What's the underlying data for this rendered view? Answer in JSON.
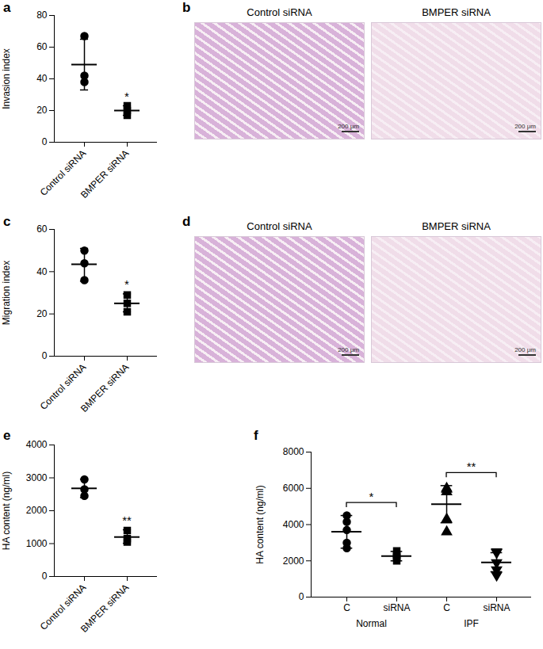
{
  "chart_data": [
    {
      "type": "scatter",
      "title": "a",
      "y_label": "Invasion index",
      "color": "#000000",
      "categories": [
        "Control siRNA",
        "BMPER siRNA"
      ],
      "markers": [
        "circle",
        "square"
      ],
      "points": [
        [
          67,
          42,
          38
        ],
        [
          23,
          20,
          17
        ]
      ],
      "mean": [
        49,
        20
      ],
      "error": [
        [
          33,
          65
        ],
        [
          17,
          23
        ]
      ],
      "ylim": [
        0,
        80
      ],
      "yticks": [
        0,
        20,
        40,
        60,
        80
      ],
      "annotations": [
        {
          "text": "*",
          "category": 1
        }
      ]
    },
    {
      "type": "image",
      "title": "b",
      "panels": [
        {
          "label": "Control siRNA",
          "scale_bar": "200 μm"
        },
        {
          "label": "BMPER siRNA",
          "scale_bar": "200 μm"
        }
      ]
    },
    {
      "type": "scatter",
      "title": "c",
      "y_label": "Migration index",
      "color": "#000000",
      "categories": [
        "Control siRNA",
        "BMPER siRNA"
      ],
      "markers": [
        "circle",
        "square"
      ],
      "points": [
        [
          50,
          44,
          36
        ],
        [
          29,
          25,
          21
        ]
      ],
      "mean": [
        43.5,
        25
      ],
      "error": [
        [
          35.5,
          51
        ],
        [
          21,
          29.5
        ]
      ],
      "ylim": [
        0,
        60
      ],
      "yticks": [
        0,
        20,
        40,
        60
      ],
      "annotations": [
        {
          "text": "*",
          "category": 1
        }
      ]
    },
    {
      "type": "image",
      "title": "d",
      "panels": [
        {
          "label": "Control siRNA",
          "scale_bar": "200 μm"
        },
        {
          "label": "BMPER siRNA",
          "scale_bar": "200 μm"
        }
      ]
    },
    {
      "type": "scatter",
      "title": "e",
      "y_label": "HA content (ng/ml)",
      "color": "#000000",
      "categories": [
        "Control siRNA",
        "BMPER siRNA"
      ],
      "markers": [
        "circle",
        "square"
      ],
      "points": [
        [
          2950,
          2650,
          2450
        ],
        [
          1400,
          1150,
          1050
        ]
      ],
      "mean": [
        2680,
        1200
      ],
      "error": [
        [
          2400,
          2960
        ],
        [
          1010,
          1420
        ]
      ],
      "ylim": [
        0,
        4000
      ],
      "yticks": [
        0,
        1000,
        2000,
        3000,
        4000
      ],
      "annotations": [
        {
          "text": "**",
          "category": 1
        }
      ]
    },
    {
      "type": "scatter",
      "title": "f",
      "y_label": "HA content (ng/ml)",
      "color": "#000000",
      "categories": [
        "C",
        "siRNA",
        "C",
        "siRNA"
      ],
      "markers": [
        "circle",
        "square",
        "triangle",
        "triangle-down"
      ],
      "groups": [
        {
          "label": "Normal",
          "categories": [
            0,
            1
          ]
        },
        {
          "label": "IPF",
          "categories": [
            2,
            3
          ]
        }
      ],
      "points": [
        [
          4500,
          4150,
          3700,
          3000,
          2700
        ],
        [
          2550,
          2350,
          2250,
          2150,
          2000
        ],
        [
          6000,
          5950,
          5800,
          4300,
          3600
        ],
        [
          2500,
          2450,
          1900,
          1500,
          1200
        ]
      ],
      "mean": [
        3610,
        2260,
        5130,
        1910
      ],
      "error": [
        [
          2700,
          4500
        ],
        [
          2000,
          2520
        ],
        [
          4100,
          6150
        ],
        [
          1400,
          2450
        ]
      ],
      "ylim": [
        0,
        8000
      ],
      "yticks": [
        0,
        2000,
        4000,
        6000,
        8000
      ],
      "annotations": [
        {
          "text": "*",
          "from": 0,
          "to": 1
        },
        {
          "text": "**",
          "from": 2,
          "to": 3
        }
      ]
    }
  ]
}
